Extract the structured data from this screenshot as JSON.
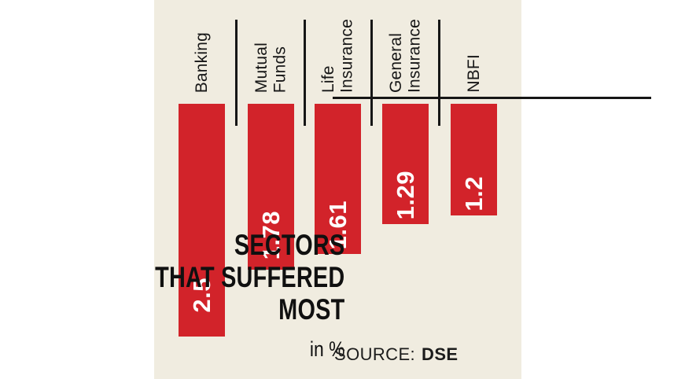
{
  "chart": {
    "title_lines": [
      "SECTORS",
      "THAT SUFFERED",
      "MOST"
    ],
    "unit": "in %",
    "source_label": "SOURCE:",
    "source_value": "DSE"
  },
  "chart_data": {
    "type": "bar",
    "orientation": "downward-from-baseline",
    "title": "SECTORS THAT SUFFERED MOST",
    "unit": "in %",
    "source": "DSE",
    "categories": [
      "Banking",
      "Mutual Funds",
      "Life Insurance",
      "General Insurance",
      "NBFI"
    ],
    "category_label_lines": [
      [
        "Banking"
      ],
      [
        "Mutual",
        "Funds"
      ],
      [
        "Life",
        "Insurance"
      ],
      [
        "General",
        "Insurance"
      ],
      [
        "NBFI"
      ]
    ],
    "values": [
      2.5,
      1.78,
      1.61,
      1.29,
      1.2
    ],
    "value_labels": [
      "2.5",
      "1.78",
      "1.61",
      "1.29",
      "1.2"
    ],
    "baseline_value": 0,
    "value_range": [
      0,
      2.5
    ],
    "grid": false,
    "legend": false,
    "colors": {
      "bar": "#d2232a",
      "background": "#f0ece0",
      "line": "#161616",
      "value_text": "#ffffff",
      "label_text": "#161616"
    }
  }
}
